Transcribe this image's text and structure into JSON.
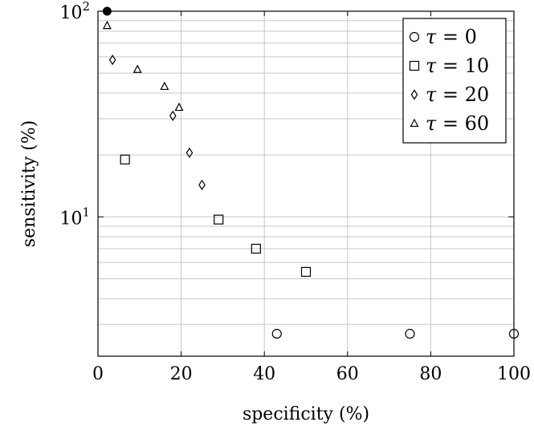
{
  "chart_data": {
    "type": "scatter",
    "xlabel": "specificity (%)",
    "ylabel": "sensitivity (%)",
    "xlim": [
      0,
      100
    ],
    "ylim": [
      2.1,
      100
    ],
    "yscale": "log",
    "grid": true,
    "legend_position": "top-right",
    "x_ticks": [
      {
        "value": 0,
        "label": "0"
      },
      {
        "value": 20,
        "label": "20"
      },
      {
        "value": 40,
        "label": "40"
      },
      {
        "value": 60,
        "label": "60"
      },
      {
        "value": 80,
        "label": "80"
      },
      {
        "value": 100,
        "label": "100"
      }
    ],
    "y_ticks": [
      {
        "value": 10,
        "base": "10",
        "exp": "1"
      },
      {
        "value": 100,
        "base": "10",
        "exp": "2"
      }
    ],
    "highlight_point": {
      "x": 2.2,
      "y": 100
    },
    "series": [
      {
        "name_var": "τ",
        "name_rel": " = 0",
        "marker": "circle",
        "points": [
          {
            "x": 43,
            "y": 2.7
          },
          {
            "x": 75,
            "y": 2.7
          },
          {
            "x": 100,
            "y": 2.7
          }
        ]
      },
      {
        "name_var": "τ",
        "name_rel": " = 10",
        "marker": "square",
        "points": [
          {
            "x": 6.5,
            "y": 19
          },
          {
            "x": 29,
            "y": 9.7
          },
          {
            "x": 38,
            "y": 7
          },
          {
            "x": 50,
            "y": 5.4
          }
        ]
      },
      {
        "name_var": "τ",
        "name_rel": " = 20",
        "marker": "diamond",
        "points": [
          {
            "x": 3.5,
            "y": 58
          },
          {
            "x": 18,
            "y": 31
          },
          {
            "x": 22,
            "y": 20.5
          },
          {
            "x": 25,
            "y": 14.3
          }
        ]
      },
      {
        "name_var": "τ",
        "name_rel": " = 60",
        "marker": "triangle",
        "points": [
          {
            "x": 2.2,
            "y": 85
          },
          {
            "x": 9.5,
            "y": 52
          },
          {
            "x": 16,
            "y": 43
          },
          {
            "x": 19.5,
            "y": 34
          }
        ]
      }
    ]
  }
}
